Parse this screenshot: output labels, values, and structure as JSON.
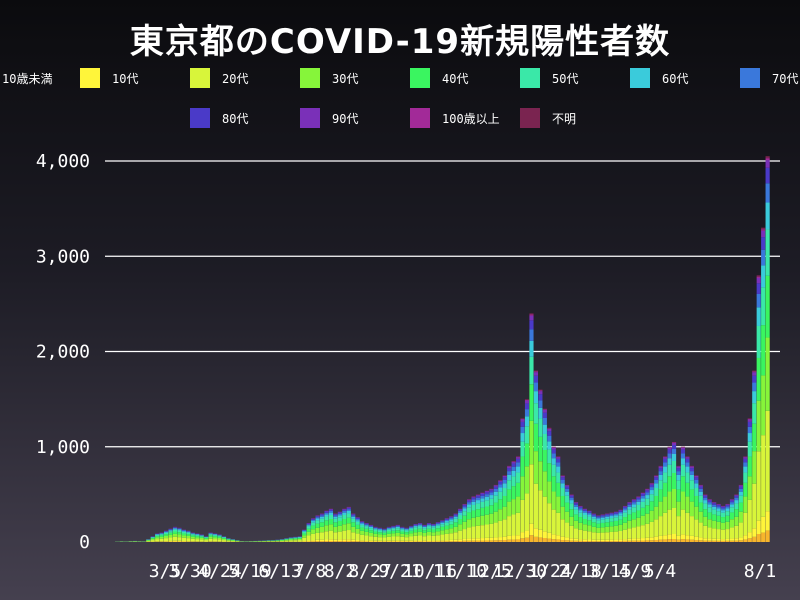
{
  "chart_data": {
    "type": "bar",
    "stacked": true,
    "title": "東京都のCOVID-19新規陽性者数",
    "xlabel": "",
    "ylabel": "",
    "ylim": [
      0,
      4000
    ],
    "yticks": [
      "0",
      "1,000",
      "2,000",
      "3,000",
      "4,000"
    ],
    "ytick_values": [
      0,
      1000,
      2000,
      3000,
      4000
    ],
    "grid": true,
    "legend_position": "top",
    "x_tick_labels": [
      "3/5",
      "3/30",
      "4/24",
      "5/19",
      "6/13",
      "7/8",
      "8/2",
      "8/27",
      "9/21",
      "10/16",
      "11/10",
      "12/5",
      "12/30",
      "1/24",
      "2/18",
      "3/15",
      "4/9",
      "5/4",
      "8/1"
    ],
    "series": [
      {
        "name": "10歳未満",
        "color": "#f7b52c"
      },
      {
        "name": "10代",
        "color": "#fff53a"
      },
      {
        "name": "20代",
        "color": "#d8f53a"
      },
      {
        "name": "30代",
        "color": "#86f53a"
      },
      {
        "name": "40代",
        "color": "#3af560"
      },
      {
        "name": "50代",
        "color": "#3ae8a8"
      },
      {
        "name": "60代",
        "color": "#3acbdb"
      },
      {
        "name": "70代",
        "color": "#3a78db"
      },
      {
        "name": "80代",
        "color": "#4a3ac8"
      },
      {
        "name": "90代",
        "color": "#7a30b8"
      },
      {
        "name": "100歳以上",
        "color": "#a22a98"
      },
      {
        "name": "不明",
        "color": "#7a2450"
      }
    ],
    "series_shares": [
      0.03,
      0.05,
      0.26,
      0.19,
      0.16,
      0.12,
      0.07,
      0.05,
      0.04,
      0.02,
      0.005,
      0.005
    ],
    "daily_totals_weekly_approx": [
      {
        "week_start": "2020-03-05",
        "values": [
          5,
          8,
          6,
          10,
          12,
          9,
          7
        ]
      },
      {
        "week_start": "2020-03-30",
        "values": [
          30,
          60,
          90,
          100,
          120,
          140,
          160
        ]
      },
      {
        "week_start": "2020-04-13",
        "values": [
          150,
          130,
          120,
          100,
          90,
          80,
          60
        ]
      },
      {
        "week_start": "2020-04-24",
        "values": [
          100,
          90,
          80,
          60,
          40,
          30,
          20
        ]
      },
      {
        "week_start": "2020-05-19",
        "values": [
          10,
          8,
          10,
          12,
          14,
          16,
          20
        ]
      },
      {
        "week_start": "2020-06-13",
        "values": [
          20,
          25,
          30,
          40,
          50,
          55,
          60
        ]
      },
      {
        "week_start": "2020-07-08",
        "values": [
          130,
          200,
          250,
          280,
          300,
          330,
          350
        ]
      },
      {
        "week_start": "2020-08-02",
        "values": [
          300,
          320,
          350,
          370,
          300,
          260,
          220
        ]
      },
      {
        "week_start": "2020-08-27",
        "values": [
          200,
          180,
          160,
          150,
          140,
          160,
          170
        ]
      },
      {
        "week_start": "2020-09-21",
        "values": [
          180,
          160,
          150,
          170,
          190,
          200,
          180
        ]
      },
      {
        "week_start": "2020-10-16",
        "values": [
          200,
          190,
          210,
          230,
          250,
          270,
          300
        ]
      },
      {
        "week_start": "2020-11-10",
        "values": [
          350,
          400,
          450,
          480,
          500,
          520,
          540
        ]
      },
      {
        "week_start": "2020-12-05",
        "values": [
          560,
          600,
          650,
          700,
          800,
          850,
          900
        ]
      },
      {
        "week_start": "2020-12-30",
        "values": [
          1300,
          1500,
          2400,
          1800,
          1600,
          1400,
          1200
        ]
      },
      {
        "week_start": "2021-01-24",
        "values": [
          1000,
          900,
          700,
          600,
          500,
          420,
          380
        ]
      },
      {
        "week_start": "2021-02-18",
        "values": [
          350,
          330,
          300,
          280,
          290,
          300,
          310
        ]
      },
      {
        "week_start": "2021-03-15",
        "values": [
          320,
          340,
          380,
          420,
          450,
          480,
          520
        ]
      },
      {
        "week_start": "2021-04-09",
        "values": [
          560,
          620,
          700,
          800,
          900,
          1000,
          1050
        ]
      },
      {
        "week_start": "2021-05-04",
        "values": [
          800,
          1000,
          900,
          800,
          700,
          600,
          500
        ]
      },
      {
        "week_start": "2021-06-01",
        "values": [
          450,
          420,
          400,
          380,
          400,
          450,
          500
        ]
      },
      {
        "week_start": "2021-07-01",
        "values": [
          600,
          900,
          1300,
          1800,
          2800,
          3300,
          4050
        ]
      }
    ]
  }
}
